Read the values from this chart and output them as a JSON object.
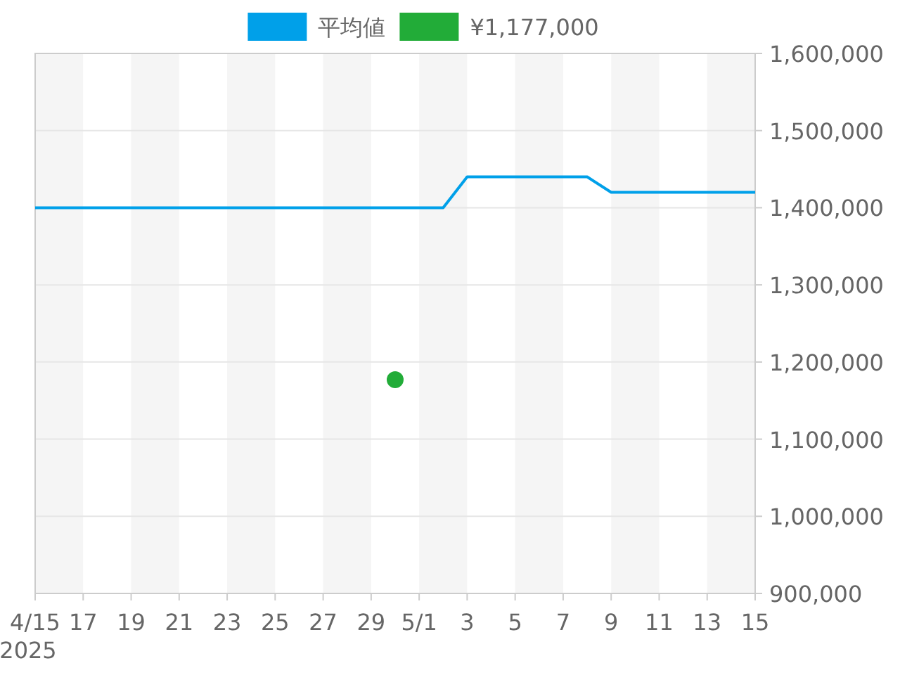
{
  "chart_data": {
    "type": "line",
    "series": [
      {
        "name": "平均値",
        "color": "#00a0e9",
        "x": [
          "2025-04-15",
          "2025-05-02",
          "2025-05-03",
          "2025-05-08",
          "2025-05-09",
          "2025-05-15"
        ],
        "values": [
          1400000,
          1400000,
          1440000,
          1440000,
          1420000,
          1420000
        ]
      },
      {
        "name": "¥1,177,000",
        "type": "scatter",
        "marker": "circle",
        "color": "#22ac38",
        "x": [
          "2025-04-30"
        ],
        "values": [
          1177000
        ]
      }
    ],
    "xlim": [
      "2025-04-15",
      "2025-05-15"
    ],
    "xticks": [
      {
        "value": "2025-04-15",
        "label": "4/15\n2025"
      },
      {
        "value": "2025-04-17",
        "label": "17"
      },
      {
        "value": "2025-04-19",
        "label": "19"
      },
      {
        "value": "2025-04-21",
        "label": "21"
      },
      {
        "value": "2025-04-23",
        "label": "23"
      },
      {
        "value": "2025-04-25",
        "label": "25"
      },
      {
        "value": "2025-04-27",
        "label": "27"
      },
      {
        "value": "2025-04-29",
        "label": "29"
      },
      {
        "value": "2025-05-01",
        "label": "5/1"
      },
      {
        "value": "2025-05-03",
        "label": "3"
      },
      {
        "value": "2025-05-05",
        "label": "5"
      },
      {
        "value": "2025-05-07",
        "label": "7"
      },
      {
        "value": "2025-05-09",
        "label": "9"
      },
      {
        "value": "2025-05-11",
        "label": "11"
      },
      {
        "value": "2025-05-13",
        "label": "13"
      },
      {
        "value": "2025-05-15",
        "label": "15"
      }
    ],
    "ylim": [
      900000,
      1600000
    ],
    "yticks": [
      {
        "value": 900000,
        "label": "900,000"
      },
      {
        "value": 1000000,
        "label": "1,000,000"
      },
      {
        "value": 1100000,
        "label": "1,100,000"
      },
      {
        "value": 1200000,
        "label": "1,200,000"
      },
      {
        "value": 1300000,
        "label": "1,300,000"
      },
      {
        "value": 1400000,
        "label": "1,400,000"
      },
      {
        "value": 1500000,
        "label": "1,500,000"
      },
      {
        "value": 1600000,
        "label": "1,600,000"
      }
    ],
    "bands": [
      {
        "axis": "x",
        "from": "2025-04-15",
        "to": "2025-04-17",
        "color": "#f5f5f5"
      },
      {
        "axis": "x",
        "from": "2025-04-19",
        "to": "2025-04-21",
        "color": "#f5f5f5"
      },
      {
        "axis": "x",
        "from": "2025-04-23",
        "to": "2025-04-25",
        "color": "#f5f5f5"
      },
      {
        "axis": "x",
        "from": "2025-04-27",
        "to": "2025-04-29",
        "color": "#f5f5f5"
      },
      {
        "axis": "x",
        "from": "2025-05-01",
        "to": "2025-05-03",
        "color": "#f5f5f5"
      },
      {
        "axis": "x",
        "from": "2025-05-05",
        "to": "2025-05-07",
        "color": "#f5f5f5"
      },
      {
        "axis": "x",
        "from": "2025-05-09",
        "to": "2025-05-11",
        "color": "#f5f5f5"
      },
      {
        "axis": "x",
        "from": "2025-05-13",
        "to": "2025-05-15",
        "color": "#f5f5f5"
      }
    ],
    "grid": "y",
    "legend": "top"
  }
}
